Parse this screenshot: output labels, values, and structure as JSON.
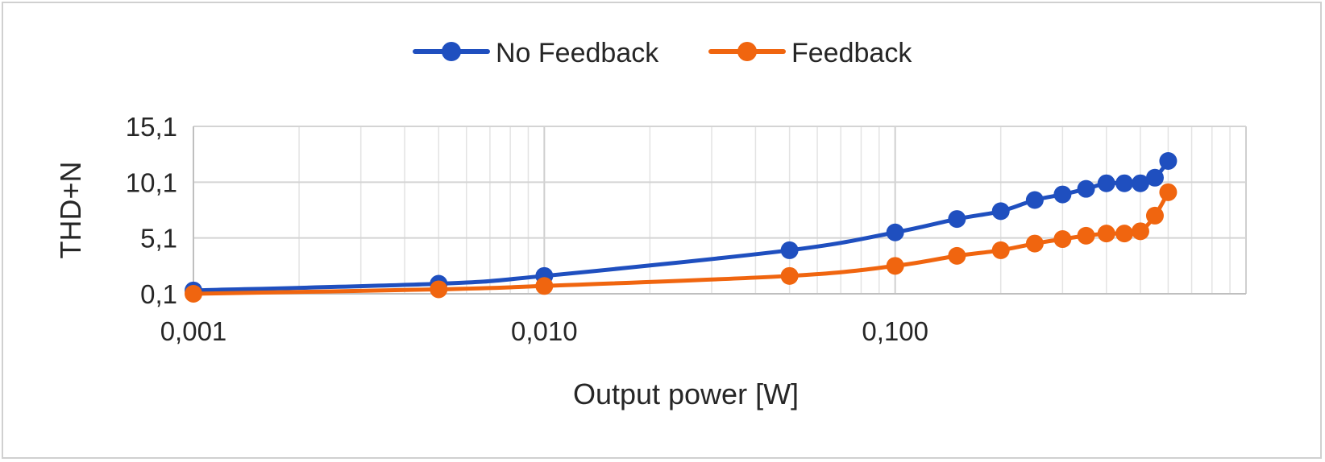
{
  "chart_data": {
    "type": "line",
    "title": "",
    "xlabel": "Output power [W]",
    "ylabel": "THD+N",
    "x_scale": "log",
    "xlim": [
      0.001,
      1.0
    ],
    "ylim": [
      0.1,
      15.1
    ],
    "x_ticks": [
      0.001,
      0.01,
      0.1
    ],
    "x_tick_labels": [
      "0,001",
      "0,010",
      "0,100"
    ],
    "y_ticks": [
      0.1,
      5.1,
      10.1,
      15.1
    ],
    "y_tick_labels": [
      "0,1",
      "5,1",
      "10,1",
      "15,1"
    ],
    "grid": true,
    "legend_position": "top",
    "x": [
      0.001,
      0.005,
      0.01,
      0.05,
      0.1,
      0.15,
      0.2,
      0.25,
      0.3,
      0.35,
      0.4,
      0.45,
      0.5,
      0.55,
      0.6
    ],
    "series": [
      {
        "name": "No Feedback",
        "color": "#1f4fbf",
        "values": [
          0.4,
          1.0,
          1.7,
          4.0,
          5.6,
          6.8,
          7.5,
          8.5,
          9.0,
          9.5,
          10.0,
          10.0,
          10.0,
          10.5,
          12.0
        ]
      },
      {
        "name": "Feedback",
        "color": "#f0650f",
        "values": [
          0.1,
          0.5,
          0.8,
          1.7,
          2.6,
          3.5,
          4.0,
          4.6,
          5.0,
          5.3,
          5.5,
          5.5,
          5.7,
          7.1,
          9.2
        ]
      }
    ]
  }
}
